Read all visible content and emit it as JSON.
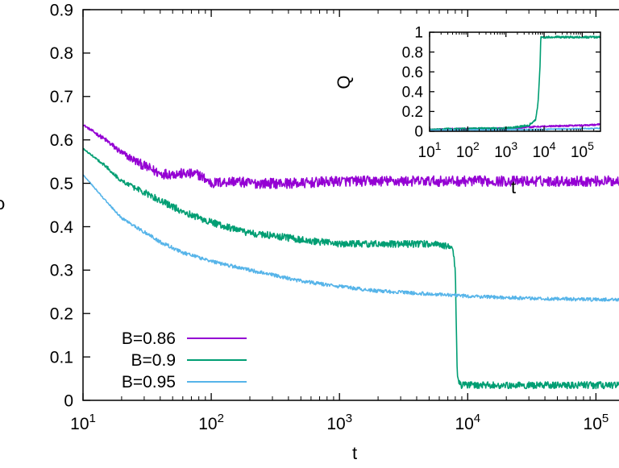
{
  "chart_data": [
    {
      "type": "line",
      "title": "",
      "xlabel": "t",
      "ylabel": "ρ",
      "xscale": "log",
      "xlim": [
        10,
        180000
      ],
      "ylim": [
        0,
        0.9
      ],
      "yticks": [
        "0",
        "0.1",
        "0.2",
        "0.3",
        "0.4",
        "0.5",
        "0.6",
        "0.7",
        "0.8",
        "0.9"
      ],
      "xticks": [
        {
          "base": "10",
          "exp": "1"
        },
        {
          "base": "10",
          "exp": "2"
        },
        {
          "base": "10",
          "exp": "3"
        },
        {
          "base": "10",
          "exp": "4"
        },
        {
          "base": "10",
          "exp": "5"
        }
      ],
      "legend_position": "bottom-left",
      "grid": false,
      "series": [
        {
          "name": "B=0.86",
          "color": "#9400D3",
          "noise": 0.012,
          "points": [
            [
              10,
              0.635
            ],
            [
              15,
              0.6
            ],
            [
              20,
              0.57
            ],
            [
              30,
              0.54
            ],
            [
              40,
              0.522
            ],
            [
              60,
              0.522
            ],
            [
              80,
              0.52
            ],
            [
              100,
              0.5
            ],
            [
              150,
              0.505
            ],
            [
              200,
              0.5
            ],
            [
              300,
              0.5
            ],
            [
              500,
              0.5
            ],
            [
              1000,
              0.505
            ],
            [
              3000,
              0.505
            ],
            [
              10000,
              0.505
            ],
            [
              30000,
              0.505
            ],
            [
              100000,
              0.505
            ],
            [
              180000,
              0.505
            ]
          ]
        },
        {
          "name": "B=0.9",
          "color": "#009E73",
          "noise": 0.008,
          "points": [
            [
              10,
              0.58
            ],
            [
              15,
              0.54
            ],
            [
              20,
              0.505
            ],
            [
              40,
              0.46
            ],
            [
              60,
              0.435
            ],
            [
              100,
              0.41
            ],
            [
              150,
              0.395
            ],
            [
              200,
              0.385
            ],
            [
              300,
              0.38
            ],
            [
              500,
              0.37
            ],
            [
              1000,
              0.36
            ],
            [
              2000,
              0.36
            ],
            [
              5000,
              0.36
            ],
            [
              7600,
              0.355
            ],
            [
              8000,
              0.3
            ],
            [
              8300,
              0.05
            ],
            [
              8800,
              0.035
            ],
            [
              20000,
              0.035
            ],
            [
              100000,
              0.035
            ],
            [
              180000,
              0.035
            ]
          ]
        },
        {
          "name": "B=0.95",
          "color": "#56B4E9",
          "noise": 0.004,
          "points": [
            [
              10,
              0.52
            ],
            [
              15,
              0.46
            ],
            [
              20,
              0.42
            ],
            [
              40,
              0.365
            ],
            [
              60,
              0.34
            ],
            [
              100,
              0.32
            ],
            [
              200,
              0.3
            ],
            [
              500,
              0.275
            ],
            [
              1000,
              0.262
            ],
            [
              2000,
              0.252
            ],
            [
              5000,
              0.245
            ],
            [
              10000,
              0.24
            ],
            [
              30000,
              0.235
            ],
            [
              100000,
              0.232
            ],
            [
              180000,
              0.232
            ]
          ]
        }
      ]
    },
    {
      "type": "line",
      "title": "",
      "xlabel": "t",
      "ylabel": "Q",
      "xscale": "log",
      "xlim": [
        10,
        300000
      ],
      "ylim": [
        0,
        1
      ],
      "yticks": [
        "0",
        "0.2",
        "0.4",
        "0.6",
        "0.8",
        "1"
      ],
      "xticks": [
        {
          "base": "10",
          "exp": "1"
        },
        {
          "base": "10",
          "exp": "2"
        },
        {
          "base": "10",
          "exp": "3"
        },
        {
          "base": "10",
          "exp": "4"
        },
        {
          "base": "10",
          "exp": "5"
        }
      ],
      "series": [
        {
          "name": "B=0.86",
          "color": "#9400D3",
          "noise": 0.008,
          "points": [
            [
              10,
              0.02
            ],
            [
              1000,
              0.03
            ],
            [
              10000,
              0.05
            ],
            [
              100000,
              0.06
            ],
            [
              300000,
              0.07
            ]
          ]
        },
        {
          "name": "B=0.9",
          "color": "#009E73",
          "noise": 0.01,
          "points": [
            [
              10,
              0.02
            ],
            [
              1000,
              0.03
            ],
            [
              4000,
              0.06
            ],
            [
              6000,
              0.12
            ],
            [
              7000,
              0.3
            ],
            [
              7800,
              0.65
            ],
            [
              8200,
              0.95
            ],
            [
              10000,
              0.95
            ],
            [
              300000,
              0.95
            ]
          ]
        },
        {
          "name": "B=0.95",
          "color": "#56B4E9",
          "noise": 0.005,
          "points": [
            [
              10,
              0.01
            ],
            [
              1000,
              0.015
            ],
            [
              10000,
              0.02
            ],
            [
              300000,
              0.03
            ]
          ]
        }
      ]
    }
  ]
}
